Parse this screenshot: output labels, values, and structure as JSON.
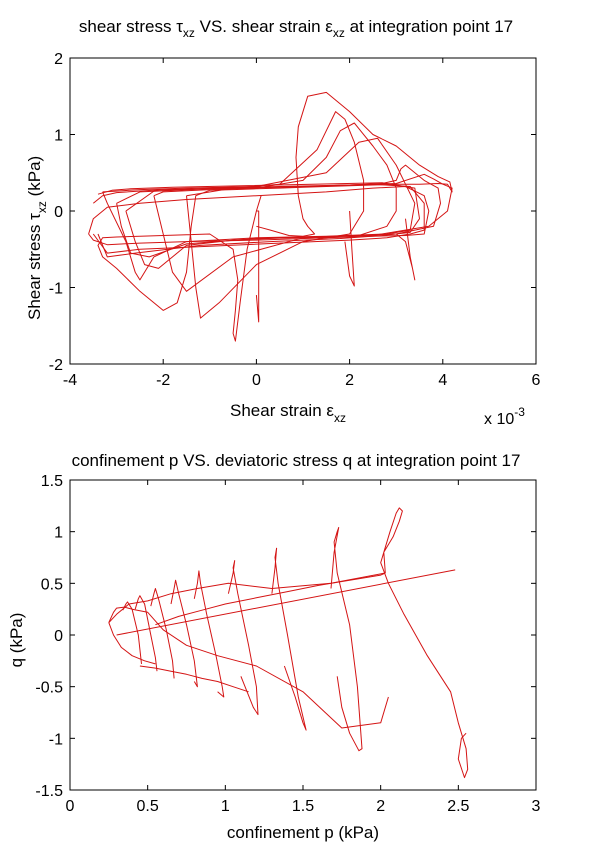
{
  "colors": {
    "curve": "#d41414",
    "axes": "#000000",
    "background": "#ffffff"
  },
  "chart_data": [
    {
      "type": "line",
      "title": {
        "p1": "shear stress ",
        "sym": "τ",
        "sub": "xz",
        "p2": " VS. shear strain ",
        "sym2": "ε",
        "sub2": "xz",
        "p3": " at integration point 17"
      },
      "xlabel": {
        "text": "Shear strain ",
        "sym": "ε",
        "sub": "xz"
      },
      "ylabel": {
        "text": "Shear stress ",
        "sym": "τ",
        "sub": "xz",
        "unit": " (kPa)"
      },
      "x_multiplier": {
        "base": "x 10",
        "exp": "-3"
      },
      "xlim": [
        -4,
        6
      ],
      "ylim": [
        -2,
        2
      ],
      "xticks": [
        -4,
        -2,
        0,
        2,
        4,
        6
      ],
      "yticks": [
        -2,
        -1,
        0,
        1,
        2
      ],
      "xtick_labels": [
        "-4",
        "-2",
        "0",
        "2",
        "4",
        "6"
      ],
      "ytick_labels": [
        "-2",
        "-1",
        "0",
        "1",
        "2"
      ],
      "grid": false,
      "series": [
        {
          "x": [
            0.0,
            0.05,
            0.05,
            0.0
          ],
          "y": [
            0.0,
            0.0,
            -1.45,
            -1.1
          ]
        },
        {
          "x": [
            0.0,
            0.3,
            0.7,
            1.0,
            1.25,
            1.1,
            1.0,
            0.9,
            0.85,
            0.9,
            1.1,
            1.5,
            2.0,
            2.5,
            3.0,
            3.5,
            3.9,
            4.15,
            4.2,
            4.1,
            3.9,
            3.5,
            3.0,
            2.5,
            2.0,
            1.5,
            1.0,
            0.5,
            0.0,
            -0.5,
            -1.0,
            -1.3,
            -1.4,
            -1.5,
            -1.7,
            -2.0,
            -2.5,
            -3.0,
            -3.3,
            -3.4,
            -3.3,
            -3.0,
            -2.5,
            -2.0,
            -1.5,
            -1.0,
            -0.5,
            -0.4,
            -0.45,
            -0.5,
            -0.45,
            -0.35,
            -0.2,
            0.0,
            0.1
          ],
          "y": [
            -0.2,
            -0.25,
            -0.32,
            -0.33,
            -0.3,
            -0.2,
            -0.1,
            0.2,
            0.7,
            1.1,
            1.5,
            1.55,
            1.3,
            1.0,
            0.85,
            0.6,
            0.45,
            0.38,
            0.25,
            0.35,
            0.36,
            0.35,
            0.35,
            0.34,
            0.33,
            0.32,
            0.31,
            0.3,
            0.29,
            0.28,
            0.27,
            0.2,
            -0.2,
            -0.8,
            -1.2,
            -1.3,
            -1.05,
            -0.75,
            -0.6,
            -0.45,
            -0.35,
            -0.34,
            -0.33,
            -0.32,
            -0.31,
            -0.3,
            -0.5,
            -0.9,
            -1.3,
            -1.6,
            -1.7,
            -1.2,
            -0.5,
            0.0,
            0.2
          ]
        },
        {
          "x": [
            -3.6,
            -3.5,
            -3.2,
            -2.5,
            -1.5,
            0.0,
            1.5,
            2.5,
            3.2,
            3.6,
            3.7,
            3.6,
            3.2,
            2.5,
            1.5,
            0.0,
            -1.5,
            -2.5,
            -3.2,
            -3.5,
            -3.6
          ],
          "y": [
            -0.3,
            -0.1,
            0.05,
            0.1,
            0.15,
            0.2,
            0.25,
            0.3,
            0.32,
            0.2,
            0.0,
            -0.3,
            -0.32,
            -0.33,
            -0.35,
            -0.38,
            -0.4,
            -0.42,
            -0.44,
            -0.38,
            -0.3
          ]
        },
        {
          "x": [
            -3.5,
            -3.3,
            -3.0,
            -2.0,
            -0.5,
            1.0,
            2.5,
            3.3,
            3.6,
            3.6,
            3.3,
            2.8,
            2.0,
            0.5,
            -1.0,
            -2.5,
            -3.2,
            -3.5
          ],
          "y": [
            0.1,
            0.2,
            0.24,
            0.28,
            0.3,
            0.32,
            0.35,
            0.32,
            0.1,
            -0.25,
            -0.3,
            -0.35,
            -0.38,
            -0.42,
            -0.46,
            -0.5,
            -0.55,
            -0.3
          ]
        },
        {
          "x": [
            -3.4,
            -3.1,
            -2.7,
            -1.8,
            -0.3,
            1.2,
            2.7,
            3.4,
            3.5,
            3.3,
            2.7,
            1.8,
            0.3,
            -1.2,
            -2.6,
            -3.2,
            -3.4
          ],
          "y": [
            0.22,
            0.27,
            0.29,
            0.31,
            0.33,
            0.35,
            0.37,
            0.3,
            -0.1,
            -0.28,
            -0.32,
            -0.36,
            -0.4,
            -0.45,
            -0.55,
            -0.6,
            -0.3
          ]
        },
        {
          "x": [
            -3.3,
            -3.2,
            -2.8,
            -2.6,
            -2.5,
            -2.2,
            -1.5,
            0.0,
            1.5,
            2.8,
            3.3,
            3.4,
            3.2,
            3.0,
            2.6,
            2.2,
            1.5,
            0.0,
            -1.5,
            -2.5,
            -3.0,
            -3.3
          ],
          "y": [
            0.25,
            0.1,
            -0.4,
            -0.8,
            -0.9,
            -0.6,
            -0.4,
            -0.35,
            -0.33,
            -0.3,
            -0.25,
            0.1,
            0.35,
            0.6,
            0.95,
            0.9,
            0.5,
            0.32,
            0.3,
            0.28,
            0.26,
            0.25
          ]
        },
        {
          "x": [
            -2.2,
            -2.0,
            -1.8,
            -1.5,
            -0.5,
            1.0,
            2.2,
            2.8,
            3.0,
            3.0,
            2.8,
            2.5,
            2.1,
            1.8,
            1.5,
            1.0,
            0.0,
            -1.0,
            -2.0,
            -2.2
          ],
          "y": [
            0.2,
            -0.3,
            -0.8,
            -1.05,
            -0.6,
            -0.35,
            -0.32,
            -0.2,
            0.0,
            0.3,
            0.6,
            0.85,
            1.15,
            1.05,
            0.7,
            0.4,
            0.3,
            0.28,
            0.25,
            0.2
          ]
        },
        {
          "x": [
            -1.5,
            -1.4,
            -1.3,
            -1.2,
            -0.8,
            0.0,
            1.0,
            2.0,
            2.3,
            2.3,
            2.1,
            1.9,
            1.7,
            1.3,
            0.5,
            -0.5,
            -1.5
          ],
          "y": [
            0.2,
            -0.4,
            -1.0,
            -1.4,
            -1.2,
            -0.7,
            -0.4,
            -0.3,
            0.0,
            0.4,
            0.9,
            1.2,
            1.3,
            0.8,
            0.35,
            0.3,
            0.2
          ]
        },
        {
          "x": [
            -2.8,
            -2.6,
            -2.4,
            -2.1,
            -1.5,
            -0.5,
            1.0,
            2.5,
            3.7,
            4.1,
            4.2,
            4.0,
            3.8,
            3.6,
            3.0,
            2.0,
            0.5,
            -1.0,
            -2.2,
            -2.8
          ],
          "y": [
            0.0,
            -0.4,
            -0.7,
            -0.75,
            -0.45,
            -0.38,
            -0.34,
            -0.32,
            -0.2,
            0.0,
            0.3,
            0.35,
            0.42,
            0.48,
            0.36,
            0.34,
            0.32,
            0.3,
            0.26,
            0.0
          ]
        },
        {
          "x": [
            -3.0,
            -2.9,
            -2.7,
            -2.3,
            -1.5,
            0.0,
            1.5,
            3.0,
            3.8,
            3.95,
            3.9,
            3.6,
            3.2,
            3.1,
            3.0,
            2.7,
            2.0,
            0.5,
            -1.0,
            -2.5,
            -3.0
          ],
          "y": [
            0.1,
            -0.2,
            -0.55,
            -0.6,
            -0.43,
            -0.36,
            -0.34,
            -0.3,
            -0.2,
            0.1,
            0.3,
            0.4,
            0.6,
            0.55,
            0.4,
            0.36,
            0.34,
            0.31,
            0.29,
            0.25,
            0.1
          ]
        },
        {
          "x": [
            3.2,
            3.3,
            3.4,
            3.35,
            3.2,
            3.0
          ],
          "y": [
            -0.1,
            -0.6,
            -0.9,
            -0.75,
            -0.4,
            -0.3
          ]
        },
        {
          "x": [
            2.0,
            2.05,
            2.1,
            2.0,
            1.9
          ],
          "y": [
            0.0,
            -0.5,
            -0.98,
            -0.85,
            -0.4
          ]
        }
      ]
    },
    {
      "type": "line",
      "title": "confinement p VS. deviatoric stress q at integration point 17",
      "xlabel": "confinement p (kPa)",
      "ylabel": "q (kPa)",
      "xlim": [
        0,
        3
      ],
      "ylim": [
        -1.5,
        1.5
      ],
      "xticks": [
        0,
        0.5,
        1,
        1.5,
        2,
        2.5,
        3
      ],
      "yticks": [
        -1.5,
        -1,
        -0.5,
        0,
        0.5,
        1,
        1.5
      ],
      "xtick_labels": [
        "0",
        "0.5",
        "1",
        "1.5",
        "2",
        "2.5",
        "3"
      ],
      "ytick_labels": [
        "-1.5",
        "-1",
        "-0.5",
        "0",
        "0.5",
        "1",
        "1.5"
      ],
      "grid": false,
      "series": [
        {
          "x": [
            0.3,
            2.48
          ],
          "y": [
            0.0,
            0.63
          ]
        },
        {
          "x": [
            0.25,
            0.28,
            0.33,
            0.4,
            0.48,
            0.55
          ],
          "y": [
            0.12,
            0.0,
            -0.12,
            -0.2,
            -0.25,
            -0.28
          ]
        },
        {
          "x": [
            2.03,
            2.02,
            2.06,
            2.1,
            2.12,
            2.14,
            2.12,
            2.08,
            2.02,
            2.0,
            2.05,
            2.15,
            2.3,
            2.45,
            2.5,
            2.55,
            2.56,
            2.54,
            2.5,
            2.52,
            2.55
          ],
          "y": [
            0.6,
            0.8,
            1.0,
            1.18,
            1.23,
            1.2,
            1.1,
            0.95,
            0.8,
            0.7,
            0.5,
            0.2,
            -0.2,
            -0.55,
            -0.85,
            -1.1,
            -1.3,
            -1.38,
            -1.2,
            -1.0,
            -0.95
          ]
        },
        {
          "x": [
            1.68,
            1.7,
            1.73,
            1.72,
            1.7,
            1.72,
            1.8,
            1.85,
            1.88,
            1.86,
            1.8,
            1.75,
            1.72
          ],
          "y": [
            0.45,
            0.8,
            1.04,
            1.0,
            0.9,
            0.6,
            0.1,
            -0.5,
            -1.1,
            -1.12,
            -0.95,
            -0.7,
            -0.4
          ]
        },
        {
          "x": [
            1.3,
            1.32,
            1.33,
            1.32,
            1.34,
            1.4,
            1.47,
            1.52,
            1.5,
            1.45,
            1.38
          ],
          "y": [
            0.4,
            0.65,
            0.84,
            0.75,
            0.5,
            0.0,
            -0.6,
            -0.92,
            -0.85,
            -0.6,
            -0.3
          ]
        },
        {
          "x": [
            1.02,
            1.05,
            1.06,
            1.05,
            1.08,
            1.15,
            1.2,
            1.21,
            1.18,
            1.1
          ],
          "y": [
            0.4,
            0.6,
            0.72,
            0.65,
            0.4,
            -0.1,
            -0.5,
            -0.77,
            -0.7,
            -0.4
          ]
        },
        {
          "x": [
            0.8,
            0.82,
            0.83,
            0.84,
            0.88,
            0.94,
            0.98,
            0.99,
            0.95
          ],
          "y": [
            0.35,
            0.5,
            0.62,
            0.5,
            0.2,
            -0.2,
            -0.5,
            -0.6,
            -0.55
          ]
        },
        {
          "x": [
            0.65,
            0.67,
            0.68,
            0.7,
            0.75,
            0.8,
            0.82,
            0.8
          ],
          "y": [
            0.3,
            0.45,
            0.53,
            0.4,
            0.1,
            -0.25,
            -0.5,
            -0.45
          ]
        },
        {
          "x": [
            0.52,
            0.54,
            0.55,
            0.57,
            0.62,
            0.66,
            0.67
          ],
          "y": [
            0.28,
            0.4,
            0.45,
            0.35,
            0.05,
            -0.25,
            -0.42
          ]
        },
        {
          "x": [
            0.42,
            0.44,
            0.45,
            0.48,
            0.52,
            0.55,
            0.56
          ],
          "y": [
            0.25,
            0.35,
            0.38,
            0.3,
            0.0,
            -0.22,
            -0.35
          ]
        },
        {
          "x": [
            0.34,
            0.36,
            0.37,
            0.4,
            0.44,
            0.46
          ],
          "y": [
            0.24,
            0.3,
            0.32,
            0.25,
            0.0,
            -0.28
          ]
        },
        {
          "x": [
            0.25,
            0.28,
            0.3,
            0.35,
            0.4,
            0.5,
            0.6,
            0.75,
            0.95,
            1.2,
            1.5,
            1.75,
            2.0,
            2.05
          ],
          "y": [
            0.12,
            0.22,
            0.26,
            0.27,
            0.25,
            0.22,
            0.05,
            -0.1,
            -0.2,
            -0.3,
            -0.55,
            -0.9,
            -0.85,
            -0.6
          ]
        },
        {
          "x": [
            0.25,
            0.3,
            0.38,
            0.5,
            0.65,
            0.82,
            1.02,
            1.3,
            1.68,
            2.03
          ],
          "y": [
            0.12,
            0.2,
            0.3,
            0.33,
            0.4,
            0.45,
            0.5,
            0.45,
            0.5,
            0.6
          ]
        },
        {
          "x": [
            0.45,
            0.55,
            0.65,
            0.75,
            0.85,
            0.95,
            1.05,
            1.15
          ],
          "y": [
            -0.3,
            -0.32,
            -0.35,
            -0.38,
            -0.42,
            -0.45,
            -0.5,
            -0.55
          ]
        },
        {
          "x": [
            0.55,
            0.7,
            0.85,
            1.0,
            1.2,
            1.4,
            1.6,
            1.8,
            2.0,
            2.03
          ],
          "y": [
            0.1,
            0.18,
            0.24,
            0.3,
            0.36,
            0.42,
            0.48,
            0.53,
            0.58,
            0.6
          ]
        }
      ]
    }
  ]
}
